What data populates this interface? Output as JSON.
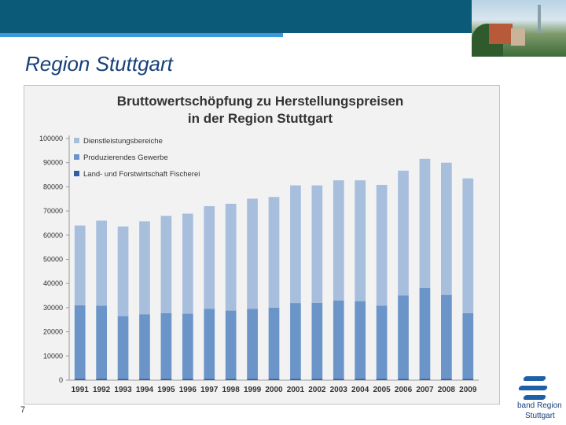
{
  "slide": {
    "title": "Region Stuttgart",
    "number": "7",
    "logo_line1": "band Region",
    "logo_line2": "Stuttgart"
  },
  "colors": {
    "header_bar": "#0a5a78",
    "accent": "#3a9ad9",
    "title_text": "#16407a",
    "series_services": "#a7bedd",
    "series_industry": "#6b95c9",
    "series_agri": "#2f5fa0"
  },
  "chart_data": {
    "type": "bar",
    "stacked": true,
    "title_line1": "Bruttowertschöpfung zu Herstellungspreisen",
    "title_line2": "in der Region Stuttgart",
    "categories": [
      "1991",
      "1992",
      "1993",
      "1994",
      "1995",
      "1996",
      "1997",
      "1998",
      "1999",
      "2000",
      "2001",
      "2002",
      "2003",
      "2004",
      "2005",
      "2006",
      "2007",
      "2008",
      "2009"
    ],
    "series": [
      {
        "name": "Land- und Forstwirtschaft Fischerei",
        "color": "#2f5fa0",
        "values": [
          500,
          500,
          500,
          500,
          500,
          500,
          500,
          500,
          500,
          500,
          500,
          500,
          500,
          500,
          500,
          500,
          500,
          500,
          500
        ]
      },
      {
        "name": "Produzierendes Gewerbe",
        "color": "#6b95c9",
        "values": [
          30500,
          30300,
          26000,
          26800,
          27200,
          27000,
          29000,
          28300,
          29000,
          29500,
          31400,
          31500,
          32500,
          32200,
          30300,
          34600,
          37700,
          34800,
          27200
        ]
      },
      {
        "name": "Dienstleistungsbereiche",
        "color": "#a7bedd",
        "values": [
          33000,
          35200,
          37100,
          38400,
          40300,
          41400,
          42500,
          44200,
          45600,
          45800,
          48700,
          48600,
          49700,
          50000,
          50000,
          51600,
          53400,
          54700,
          55800
        ]
      }
    ],
    "legend_order": [
      "Dienstleistungsbereiche",
      "Produzierendes Gewerbe",
      "Land- und Forstwirtschaft Fischerei"
    ],
    "legend_position": "top-left",
    "ylim": [
      0,
      100000
    ],
    "yticks": [
      0,
      10000,
      20000,
      30000,
      40000,
      50000,
      60000,
      70000,
      80000,
      90000,
      100000
    ],
    "grid": false
  }
}
